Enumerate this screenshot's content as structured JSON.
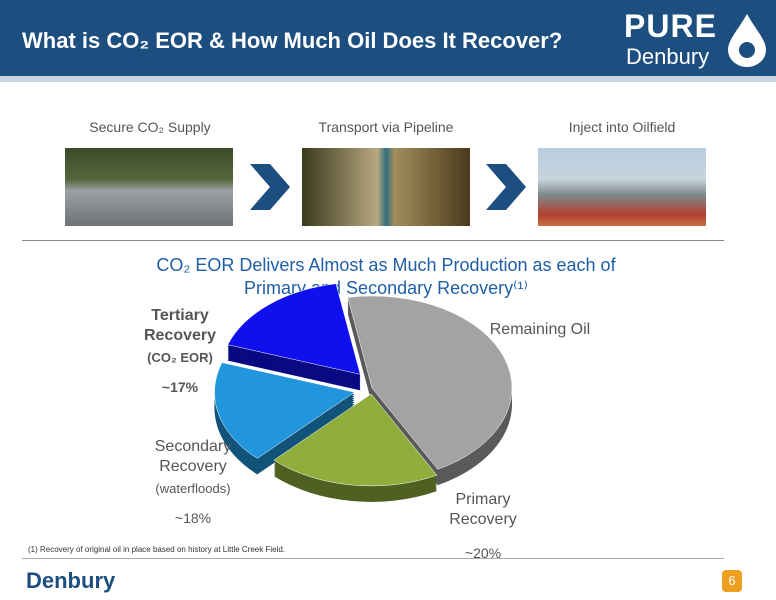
{
  "header": {
    "title": "What is CO₂ EOR & How Much Oil Does It Recover?",
    "logo_top": "PURE",
    "logo_bottom": "Denbury"
  },
  "steps": [
    {
      "label": "Secure CO₂ Supply"
    },
    {
      "label": "Transport via Pipeline"
    },
    {
      "label": "Inject into Oilfield"
    }
  ],
  "chart_data": {
    "type": "pie",
    "title": "CO₂ EOR Delivers Almost as Much Production as each of Primary and Secondary Recovery⁽¹⁾",
    "categories": [
      "Remaining Oil",
      "Primary Recovery",
      "Secondary Recovery",
      "Tertiary Recovery"
    ],
    "notes": [
      null,
      null,
      "(waterfloods)",
      "(CO₂ EOR)"
    ],
    "values": [
      45,
      20,
      18,
      17
    ],
    "value_labels": [
      null,
      "~20%",
      "~18%",
      "~17%"
    ],
    "colors": [
      "#a3a3a3",
      "#8fae3c",
      "#2196dc",
      "#1010ee"
    ]
  },
  "footnote": "(1) Recovery of original oil in place based on history at Little Creek Field.",
  "footer_logo": "Denbury",
  "page_number": "6"
}
